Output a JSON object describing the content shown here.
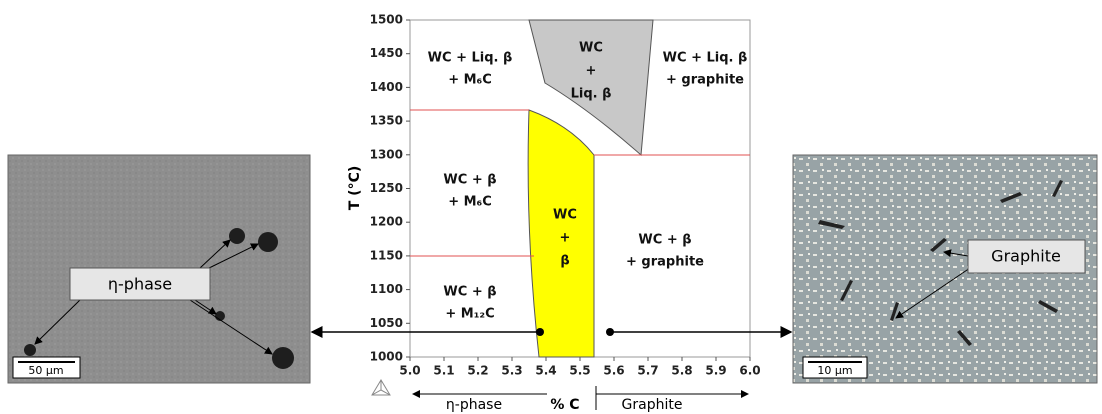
{
  "diagram": {
    "y_axis": {
      "label": "T (°C)",
      "ticks": [
        1500,
        1450,
        1400,
        1350,
        1300,
        1250,
        1200,
        1150,
        1100,
        1050,
        1000
      ]
    },
    "x_axis": {
      "label": "% C",
      "ticks": [
        "5.0",
        "5.1",
        "5.2",
        "5.3",
        "5.4",
        "5.5",
        "5.6",
        "5.7",
        "5.8",
        "5.9",
        "6.0"
      ]
    },
    "regions": [
      {
        "lines": [
          "WC + Liq. β",
          "+ M₆C"
        ]
      },
      {
        "lines": [
          "WC",
          "+",
          "Liq. β"
        ]
      },
      {
        "lines": [
          "WC + Liq. β",
          "+ graphite"
        ]
      },
      {
        "lines": [
          "WC + β",
          "+ M₆C"
        ]
      },
      {
        "lines": [
          "WC",
          "+",
          "β"
        ]
      },
      {
        "lines": [
          "WC + β",
          "+ graphite"
        ]
      },
      {
        "lines": [
          "WC + β",
          "+ M₁₂C"
        ]
      }
    ],
    "left_image": {
      "label": "η-phase",
      "scale": "50 µm"
    },
    "right_image": {
      "label": "Graphite",
      "scale": "10 µm"
    },
    "bottom": {
      "left": "η-phase",
      "right": "Graphite"
    }
  }
}
